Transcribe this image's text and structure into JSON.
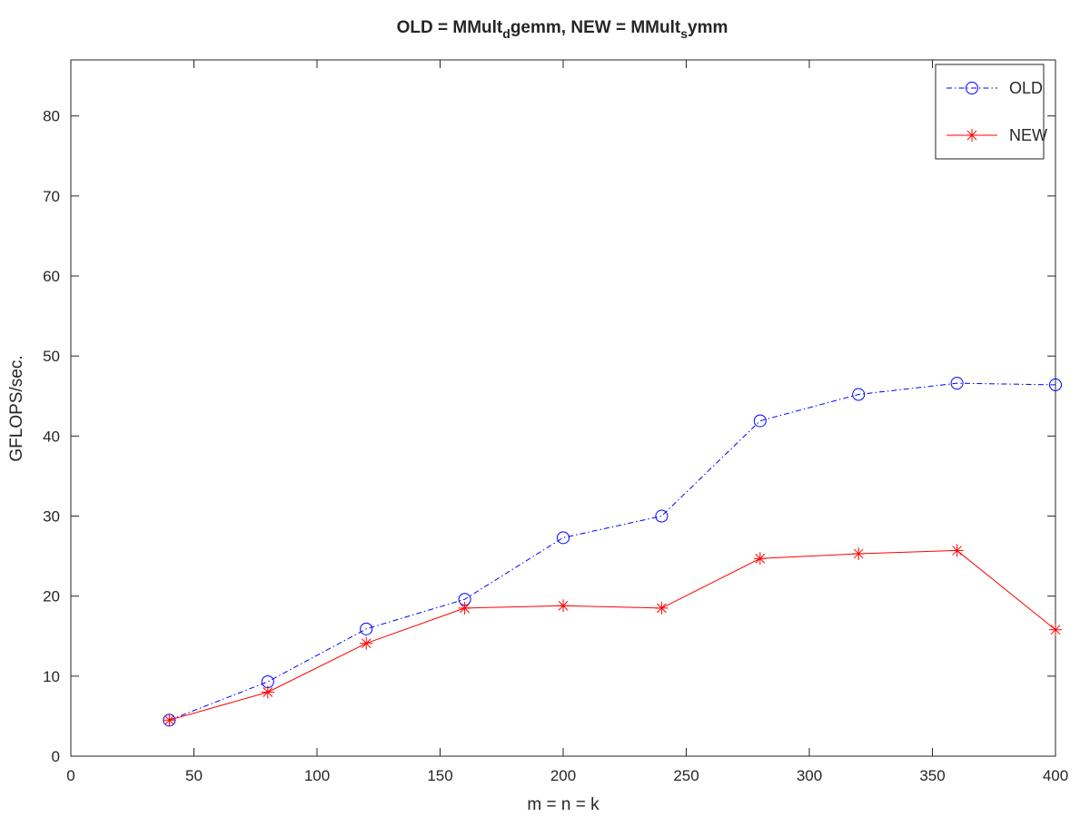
{
  "chart_data": {
    "type": "line",
    "title": "OLD = MMult",
    "title_parts": {
      "old_prefix": "OLD = MMult",
      "old_sub": "d",
      "old_suffix": "gemm, NEW = MMult",
      "new_sub": "s",
      "new_suffix": "ymm"
    },
    "xlabel": "m = n = k",
    "ylabel": "GFLOPS/sec.",
    "xlim": [
      0,
      400
    ],
    "ylim": [
      0,
      87
    ],
    "xticks": [
      0,
      50,
      100,
      150,
      200,
      250,
      300,
      350,
      400
    ],
    "yticks": [
      0,
      10,
      20,
      30,
      40,
      50,
      60,
      70,
      80
    ],
    "grid": false,
    "legend_position": "top-right",
    "x": [
      40,
      80,
      120,
      160,
      200,
      240,
      280,
      320,
      360,
      400
    ],
    "series": [
      {
        "name": "OLD",
        "color": "#0000ff",
        "marker": "circle",
        "line_style": "dash-dot",
        "values": [
          4.5,
          9.3,
          15.9,
          19.6,
          27.3,
          30.0,
          41.9,
          45.2,
          46.6,
          46.4
        ]
      },
      {
        "name": "NEW",
        "color": "#ff0000",
        "marker": "asterisk",
        "line_style": "solid",
        "values": [
          4.5,
          8.0,
          14.1,
          18.5,
          18.8,
          18.5,
          24.7,
          25.3,
          25.7,
          15.8
        ]
      }
    ]
  }
}
